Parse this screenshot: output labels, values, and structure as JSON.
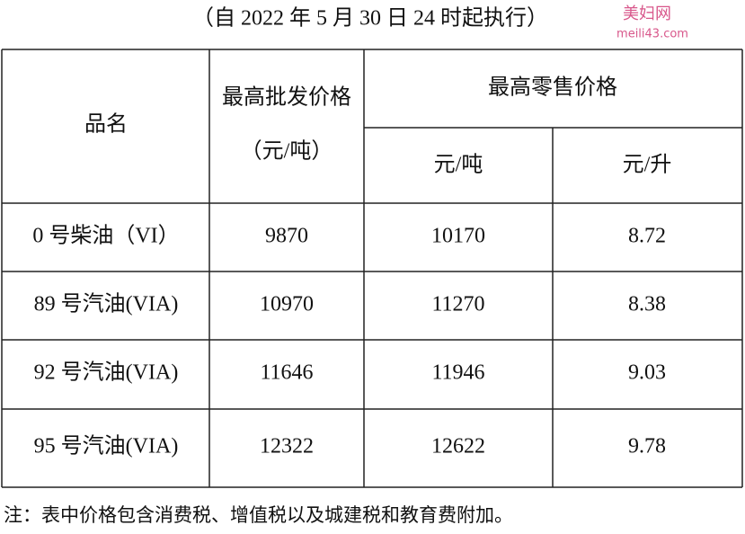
{
  "header": {
    "title": "（自 2022 年 5 月 30 日 24 时起执行）",
    "watermark": {
      "name": "美妇网",
      "url": "meili43.com"
    }
  },
  "table": {
    "columns": {
      "name": "品名",
      "wholesale": "最高批发价格",
      "wholesale_unit": "（元/吨）",
      "retail": "最高零售价格",
      "retail_units": [
        "元/吨",
        "元/升"
      ]
    },
    "rows": [
      [
        "0 号柴油（VI）",
        9870,
        10170,
        8.72
      ],
      [
        "89 号汽油(VIA)",
        10970,
        11270,
        8.38
      ],
      [
        "92 号汽油(VIA)",
        11646,
        11946,
        9.03
      ],
      [
        "95 号汽油(VIA)",
        12322,
        12622,
        9.78
      ]
    ]
  },
  "note": "注：表中价格包含消费税、增值税以及城建税和教育费附加。"
}
